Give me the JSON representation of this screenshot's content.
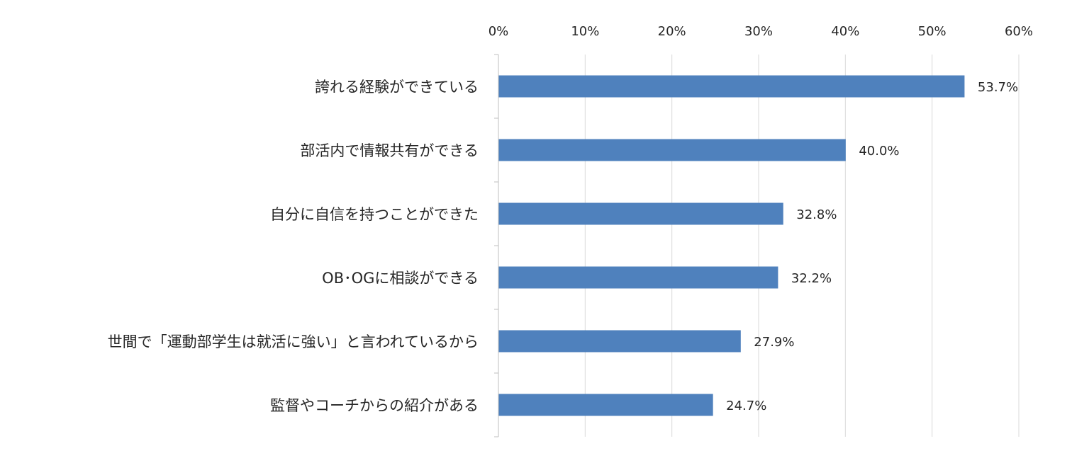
{
  "chart_data": {
    "type": "bar",
    "orientation": "horizontal",
    "categories": [
      "誇れる経験ができている",
      "部活内で情報共有ができる",
      "自分に自信を持つことができた",
      "OB･OGに相談ができる",
      "世間で「運動部学生は就活に強い」と言われているから",
      "監督やコーチからの紹介がある"
    ],
    "values": [
      53.7,
      40.0,
      32.8,
      32.2,
      27.9,
      24.7
    ],
    "value_labels": [
      "53.7%",
      "40.0%",
      "32.8%",
      "32.2%",
      "27.9%",
      "24.7%"
    ],
    "xlim": [
      0,
      60
    ],
    "x_ticks": [
      0,
      10,
      20,
      30,
      40,
      50,
      60
    ],
    "x_tick_labels": [
      "0%",
      "10%",
      "20%",
      "30%",
      "40%",
      "50%",
      "60%"
    ],
    "x_axis_position": "top",
    "grid": "vertical",
    "bar_color": "#4f81bd",
    "grid_color": "#d9d9d9",
    "title": "",
    "xlabel": "",
    "ylabel": ""
  }
}
